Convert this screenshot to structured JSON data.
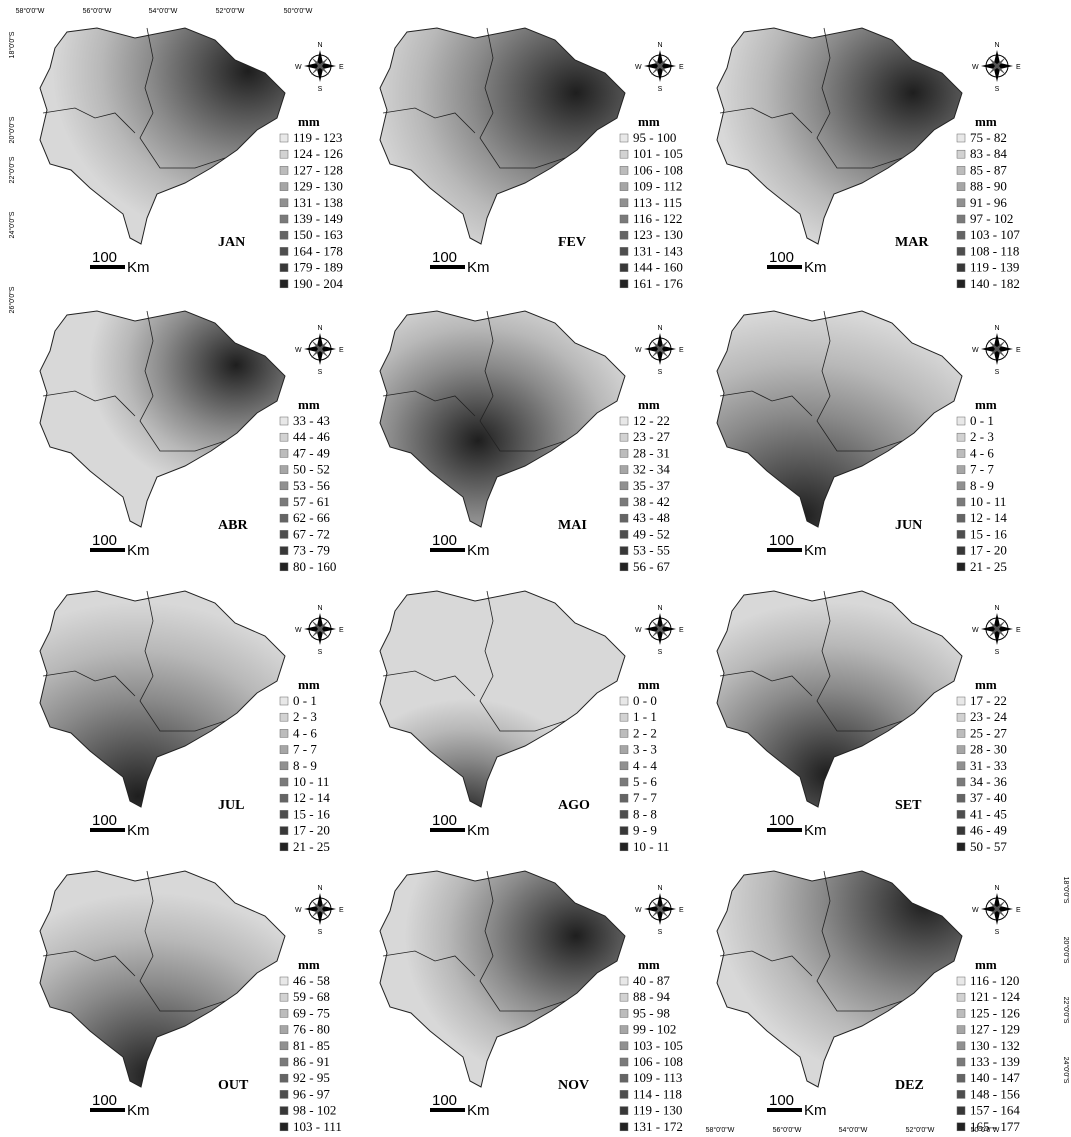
{
  "top_axis": [
    "58°0'0\"W",
    "56°0'0\"W",
    "54°0'0\"W",
    "52°0'0\"W",
    "50°0'0\"W"
  ],
  "left_axis": [
    "18°0'0\"S",
    "20°0'0\"S",
    "22°0'0\"S",
    "24°0'0\"S",
    "26°0'0\"S"
  ],
  "bottom_axis": [
    "58°0'0\"W",
    "56°0'0\"W",
    "54°0'0\"W",
    "52°0'0\"W",
    "50°0'0\"W"
  ],
  "right_axis": [
    "18°0'0\"S",
    "20°0'0\"S",
    "22°0'0\"S",
    "24°0'0\"S"
  ],
  "compass": {
    "n": "N",
    "s": "S",
    "e": "E",
    "w": "W"
  },
  "scale": {
    "distance": "100",
    "unit": "Km"
  },
  "panels": [
    {
      "month": "JAN",
      "unit": "mm",
      "legend": [
        "119 - 123",
        "124 - 126",
        "127 - 128",
        "129 - 130",
        "131 - 138",
        "139 - 149",
        "150 - 163",
        "164 - 178",
        "179 - 189",
        "190 - 204"
      ]
    },
    {
      "month": "FEV",
      "unit": "mm",
      "legend": [
        "95 - 100",
        "101 - 105",
        "106 - 108",
        "109 - 112",
        "113 - 115",
        "116 - 122",
        "123 - 130",
        "131 - 143",
        "144 - 160",
        "161 - 176"
      ]
    },
    {
      "month": "MAR",
      "unit": "mm",
      "legend": [
        "75 - 82",
        "83 - 84",
        "85 - 87",
        "88 - 90",
        "91 - 96",
        "97 - 102",
        "103 - 107",
        "108 - 118",
        "119 - 139",
        "140 - 182"
      ]
    },
    {
      "month": "ABR",
      "unit": "mm",
      "legend": [
        "33 - 43",
        "44 - 46",
        "47 - 49",
        "50 - 52",
        "53 - 56",
        "57 - 61",
        "62 - 66",
        "67 - 72",
        "73 - 79",
        "80 - 160"
      ]
    },
    {
      "month": "MAI",
      "unit": "mm",
      "legend": [
        "12 - 22",
        "23 - 27",
        "28 - 31",
        "32 - 34",
        "35 - 37",
        "38 - 42",
        "43 - 48",
        "49 - 52",
        "53 - 55",
        "56 - 67"
      ]
    },
    {
      "month": "JUN",
      "unit": "mm",
      "legend": [
        "0 - 1",
        "2 - 3",
        "4 - 6",
        "7 - 7",
        "8 - 9",
        "10 - 11",
        "12 - 14",
        "15 - 16",
        "17 - 20",
        "21 - 25"
      ]
    },
    {
      "month": "JUL",
      "unit": "mm",
      "legend": [
        "0 - 1",
        "2 - 3",
        "4 - 6",
        "7 - 7",
        "8 - 9",
        "10 - 11",
        "12 - 14",
        "15 - 16",
        "17 - 20",
        "21 - 25"
      ]
    },
    {
      "month": "AGO",
      "unit": "mm",
      "legend": [
        "0 - 0",
        "1 - 1",
        "2 - 2",
        "3 - 3",
        "4 - 4",
        "5 - 6",
        "7 - 7",
        "8 - 8",
        "9 - 9",
        "10 - 11"
      ]
    },
    {
      "month": "SET",
      "unit": "mm",
      "legend": [
        "17 - 22",
        "23 - 24",
        "25 - 27",
        "28 - 30",
        "31 - 33",
        "34 - 36",
        "37 - 40",
        "41 - 45",
        "46 - 49",
        "50 - 57"
      ]
    },
    {
      "month": "OUT",
      "unit": "mm",
      "legend": [
        "46 - 58",
        "59 - 68",
        "69 - 75",
        "76 - 80",
        "81 - 85",
        "86 - 91",
        "92 - 95",
        "96 - 97",
        "98 - 102",
        "103 - 111"
      ]
    },
    {
      "month": "NOV",
      "unit": "mm",
      "legend": [
        "40 - 87",
        "88 - 94",
        "95 - 98",
        "99 - 102",
        "103 - 105",
        "106 - 108",
        "109 - 113",
        "114 - 118",
        "119 - 130",
        "131 - 172"
      ]
    },
    {
      "month": "DEZ",
      "unit": "mm",
      "legend": [
        "116 - 120",
        "121 - 124",
        "125 - 126",
        "127 - 129",
        "130 - 132",
        "133 - 139",
        "140 - 147",
        "148 - 156",
        "157 - 164",
        "165 - 177"
      ]
    }
  ]
}
